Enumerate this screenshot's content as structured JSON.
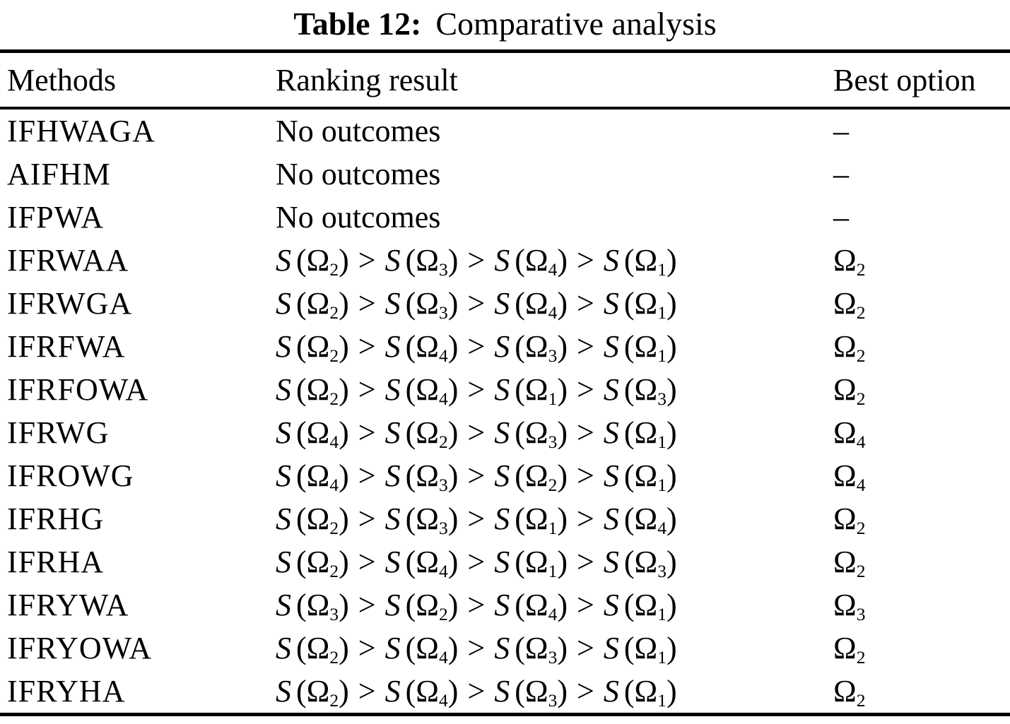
{
  "title": {
    "label": "Table 12:",
    "caption": "Comparative analysis"
  },
  "table": {
    "headers": [
      "Methods",
      "Ranking result",
      "Best option"
    ],
    "score_symbol": "S",
    "omega_symbol": "Ω",
    "gt_symbol": ">",
    "no_outcome_text": "No outcomes",
    "dash": "–",
    "rows": [
      {
        "method": "IFHWAGA",
        "ranking": null,
        "best": null
      },
      {
        "method": "AIFHM",
        "ranking": null,
        "best": null
      },
      {
        "method": "IFPWA",
        "ranking": null,
        "best": null
      },
      {
        "method": "IFRWAA",
        "ranking": [
          2,
          3,
          4,
          1
        ],
        "best": 2
      },
      {
        "method": "IFRWGA",
        "ranking": [
          2,
          3,
          4,
          1
        ],
        "best": 2
      },
      {
        "method": "IFRFWA",
        "ranking": [
          2,
          4,
          3,
          1
        ],
        "best": 2
      },
      {
        "method": "IFRFOWA",
        "ranking": [
          2,
          4,
          1,
          3
        ],
        "best": 2
      },
      {
        "method": "IFRWG",
        "ranking": [
          4,
          2,
          3,
          1
        ],
        "best": 4
      },
      {
        "method": "IFROWG",
        "ranking": [
          4,
          3,
          2,
          1
        ],
        "best": 4
      },
      {
        "method": "IFRHG",
        "ranking": [
          2,
          3,
          1,
          4
        ],
        "best": 2
      },
      {
        "method": "IFRHA",
        "ranking": [
          2,
          4,
          1,
          3
        ],
        "best": 2
      },
      {
        "method": "IFRYWA",
        "ranking": [
          3,
          2,
          4,
          1
        ],
        "best": 3
      },
      {
        "method": "IFRYOWA",
        "ranking": [
          2,
          4,
          3,
          1
        ],
        "best": 2
      },
      {
        "method": "IFRYHA",
        "ranking": [
          2,
          4,
          3,
          1
        ],
        "best": 2
      }
    ]
  }
}
